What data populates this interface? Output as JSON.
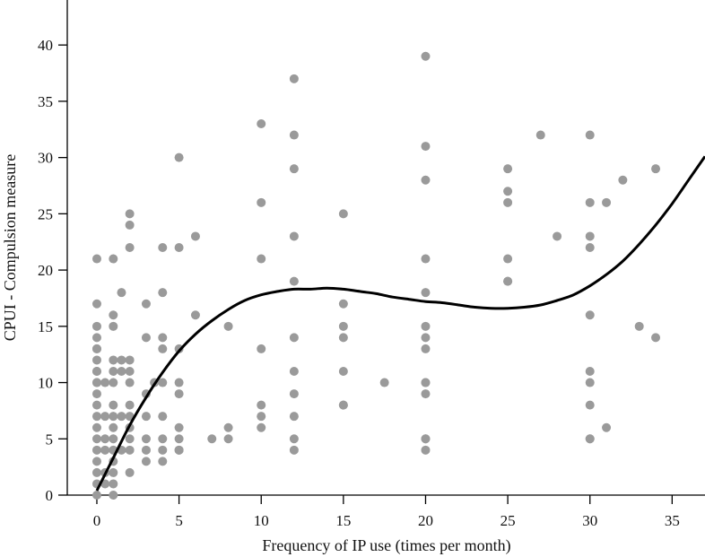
{
  "chart_data": {
    "type": "scatter",
    "title": "",
    "xlabel": "Frequency of IP use (times per month)",
    "ylabel": "CPUI - Compulsion measure",
    "xlim": [
      -1.8,
      37
    ],
    "ylim": [
      0,
      44
    ],
    "xticks": [
      0,
      5,
      10,
      15,
      20,
      25,
      30,
      35
    ],
    "yticks": [
      0,
      5,
      10,
      15,
      20,
      25,
      30,
      35,
      40
    ],
    "grid": false,
    "legend": "none",
    "point_color": "#9a9a9a",
    "curve_color": "#000000",
    "series": [
      {
        "kind": "points",
        "x": [
          0,
          0,
          0,
          0,
          0,
          0,
          0,
          0,
          0,
          0,
          0,
          0,
          0,
          0,
          0,
          0,
          0,
          0,
          0,
          0,
          0,
          0.5,
          0.5,
          0.5,
          0.5,
          0.5,
          0.5,
          1,
          1,
          1,
          1,
          1,
          1,
          1,
          1,
          1,
          1,
          1,
          1,
          1,
          1,
          1,
          1.5,
          1.5,
          1.5,
          1.5,
          1.5,
          2,
          2,
          2,
          2,
          2,
          2,
          2,
          2,
          2,
          2,
          2,
          2,
          3,
          3,
          3,
          3,
          3,
          3,
          3,
          3.5,
          4,
          4,
          4,
          4,
          4,
          4,
          4,
          4,
          4,
          5,
          5,
          5,
          5,
          5,
          5,
          5,
          5,
          5,
          6,
          6,
          7,
          8,
          8,
          8,
          10,
          10,
          10,
          10,
          10,
          10,
          10,
          12,
          12,
          12,
          12,
          12,
          12,
          12,
          12,
          12,
          12,
          12,
          15,
          15,
          15,
          15,
          15,
          15,
          15,
          17.5,
          20,
          20,
          20,
          20,
          20,
          20,
          20,
          20,
          20,
          20,
          20,
          20,
          20,
          20,
          25,
          25,
          25,
          25,
          25,
          25,
          27,
          28,
          30,
          30,
          30,
          30,
          30,
          30,
          30,
          30,
          30,
          30,
          31,
          31,
          32,
          33,
          34,
          34
        ],
        "y": [
          21,
          17,
          15,
          14,
          13,
          11,
          10,
          9,
          8,
          7,
          6,
          5,
          4,
          3,
          2,
          1,
          0,
          10,
          11,
          12,
          13,
          10,
          7,
          5,
          4,
          2,
          1,
          21,
          16,
          15,
          12,
          11,
          10,
          8,
          7,
          6,
          5,
          4,
          3,
          2,
          1,
          0,
          18,
          12,
          11,
          7,
          4,
          25,
          24,
          22,
          12,
          11,
          10,
          8,
          7,
          6,
          5,
          4,
          2,
          17,
          14,
          9,
          7,
          5,
          4,
          3,
          10,
          22,
          18,
          14,
          13,
          10,
          7,
          5,
          4,
          3,
          30,
          22,
          13,
          10,
          9,
          6,
          5,
          4,
          4,
          23,
          16,
          5,
          15,
          6,
          5,
          33,
          26,
          21,
          13,
          8,
          7,
          6,
          37,
          32,
          29,
          23,
          19,
          14,
          11,
          9,
          7,
          5,
          4,
          25,
          17,
          15,
          14,
          11,
          8,
          8,
          10,
          39,
          31,
          28,
          21,
          18,
          15,
          14,
          13,
          10,
          10,
          9,
          5,
          4,
          5,
          29,
          27,
          26,
          21,
          19,
          19,
          32,
          23,
          32,
          26,
          23,
          22,
          16,
          11,
          10,
          8,
          5,
          5,
          26,
          6,
          28,
          15,
          29,
          14
        ]
      },
      {
        "kind": "fitted-curve",
        "x": [
          0,
          1,
          2,
          3,
          4,
          5,
          6,
          7,
          8,
          9,
          10,
          11,
          12,
          13,
          14,
          15,
          16,
          17,
          18,
          19,
          20,
          21,
          22,
          23,
          24,
          25,
          26,
          27,
          28,
          29,
          30,
          31,
          32,
          33,
          34,
          35,
          36,
          37
        ],
        "y": [
          0.4,
          3.3,
          6.2,
          8.7,
          10.9,
          12.8,
          14.3,
          15.5,
          16.5,
          17.3,
          17.8,
          18.1,
          18.3,
          18.3,
          18.4,
          18.3,
          18.1,
          17.9,
          17.6,
          17.4,
          17.2,
          17.1,
          16.9,
          16.7,
          16.6,
          16.6,
          16.7,
          16.9,
          17.3,
          17.8,
          18.6,
          19.6,
          20.8,
          22.3,
          24.0,
          25.9,
          28.0,
          30.1
        ]
      }
    ]
  }
}
